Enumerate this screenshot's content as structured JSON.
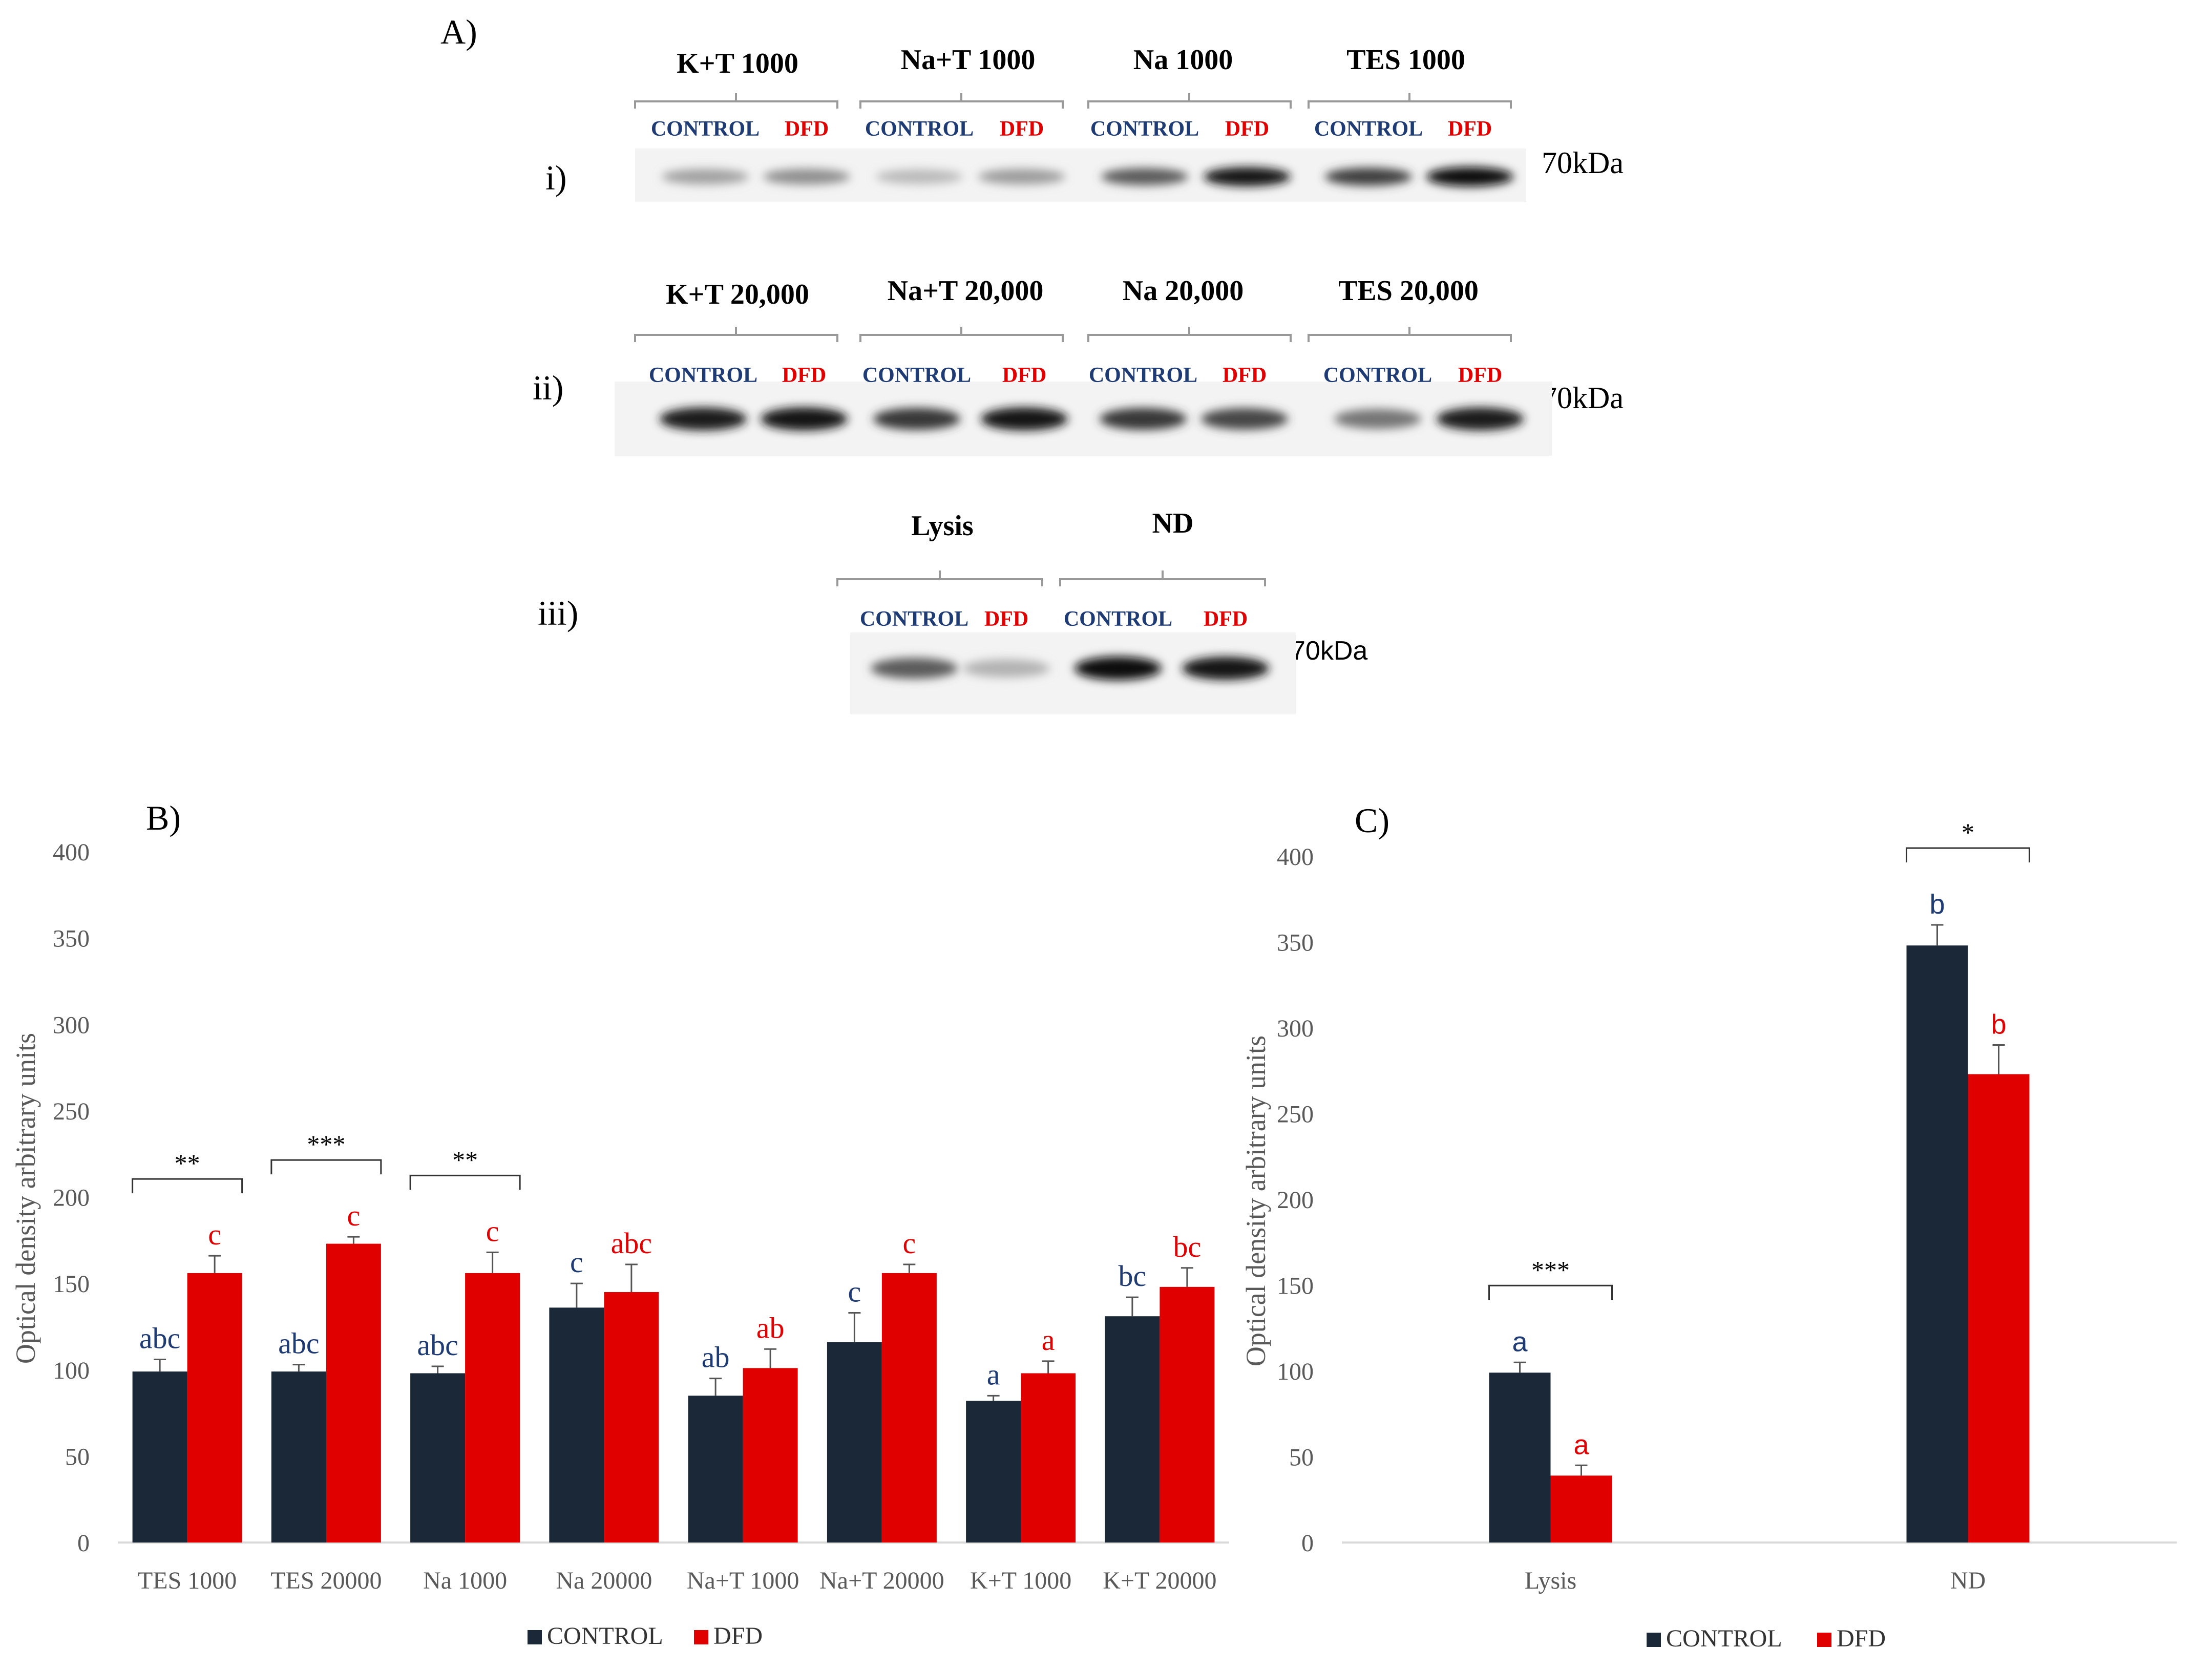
{
  "colors": {
    "control": "#1b2838",
    "dfd": "#e00000",
    "control_text": "#1f3b73",
    "dfd_text": "#e00000",
    "axis_text": "#595959",
    "grid": "#d9d9d9"
  },
  "panel_a": {
    "label": "A)",
    "mw": "70kDa",
    "lane_control": "CONTROL",
    "lane_dfd": "DFD",
    "rows": [
      {
        "label": "i)",
        "groups": [
          "K+T 1000",
          "Na+T 1000",
          "Na 1000",
          "TES 1000"
        ],
        "intensity": [
          [
            0.3,
            0.38
          ],
          [
            0.18,
            0.32
          ],
          [
            0.62,
            0.95
          ],
          [
            0.75,
            1.0
          ]
        ]
      },
      {
        "label": "ii)",
        "groups": [
          "K+T 20,000",
          "Na+T 20,000",
          "Na 20,000",
          "TES 20,000"
        ],
        "intensity": [
          [
            0.92,
            0.95
          ],
          [
            0.78,
            0.94
          ],
          [
            0.78,
            0.72
          ],
          [
            0.5,
            0.92
          ]
        ]
      },
      {
        "label": "iii)",
        "groups": [
          "Lysis",
          "ND"
        ],
        "intensity": [
          [
            0.62,
            0.22
          ],
          [
            1.0,
            0.95
          ]
        ]
      }
    ]
  },
  "chart_data": [
    {
      "panel": "B)",
      "type": "bar",
      "ylabel": "Optical density arbitrary units",
      "ylim": [
        0,
        400
      ],
      "yticks": [
        0,
        50,
        100,
        150,
        200,
        250,
        300,
        350,
        400
      ],
      "categories": [
        "TES 1000",
        "TES 20000",
        "Na 1000",
        "Na 20000",
        "Na+T 1000",
        "Na+T 20000",
        "K+T 1000",
        "K+T 20000"
      ],
      "series": [
        {
          "name": "CONTROL",
          "values": [
            99,
            99,
            98,
            136,
            85,
            116,
            82,
            131
          ],
          "errors": [
            7,
            4,
            4,
            14,
            10,
            17,
            3,
            11
          ],
          "labels": [
            "abc",
            "abc",
            "abc",
            "c",
            "ab",
            "c",
            "a",
            "bc"
          ]
        },
        {
          "name": "DFD",
          "values": [
            156,
            173,
            156,
            145,
            101,
            156,
            98,
            148
          ],
          "errors": [
            10,
            4,
            12,
            16,
            11,
            5,
            7,
            11
          ],
          "labels": [
            "c",
            "c",
            "c",
            "abc",
            "ab",
            "c",
            "a",
            "bc"
          ]
        }
      ],
      "significance": [
        {
          "category": "TES 1000",
          "text": "**"
        },
        {
          "category": "TES 20000",
          "text": "***"
        },
        {
          "category": "Na 1000",
          "text": "**"
        }
      ],
      "legend": "bottom",
      "grid": false
    },
    {
      "panel": "C)",
      "type": "bar",
      "ylabel": "Optical density arbitrary units",
      "ylim": [
        0,
        400
      ],
      "yticks": [
        0,
        50,
        100,
        150,
        200,
        250,
        300,
        350,
        400
      ],
      "categories": [
        "Lysis",
        "ND"
      ],
      "series": [
        {
          "name": "CONTROL",
          "values": [
            99,
            348
          ],
          "errors": [
            6,
            12
          ],
          "labels": [
            "a",
            "b"
          ]
        },
        {
          "name": "DFD",
          "values": [
            39,
            273
          ],
          "errors": [
            6,
            17
          ],
          "labels": [
            "a",
            "b"
          ]
        }
      ],
      "significance": [
        {
          "category": "Lysis",
          "text": "***"
        },
        {
          "category": "ND",
          "text": "*"
        }
      ],
      "legend": "bottom",
      "grid": false
    }
  ]
}
